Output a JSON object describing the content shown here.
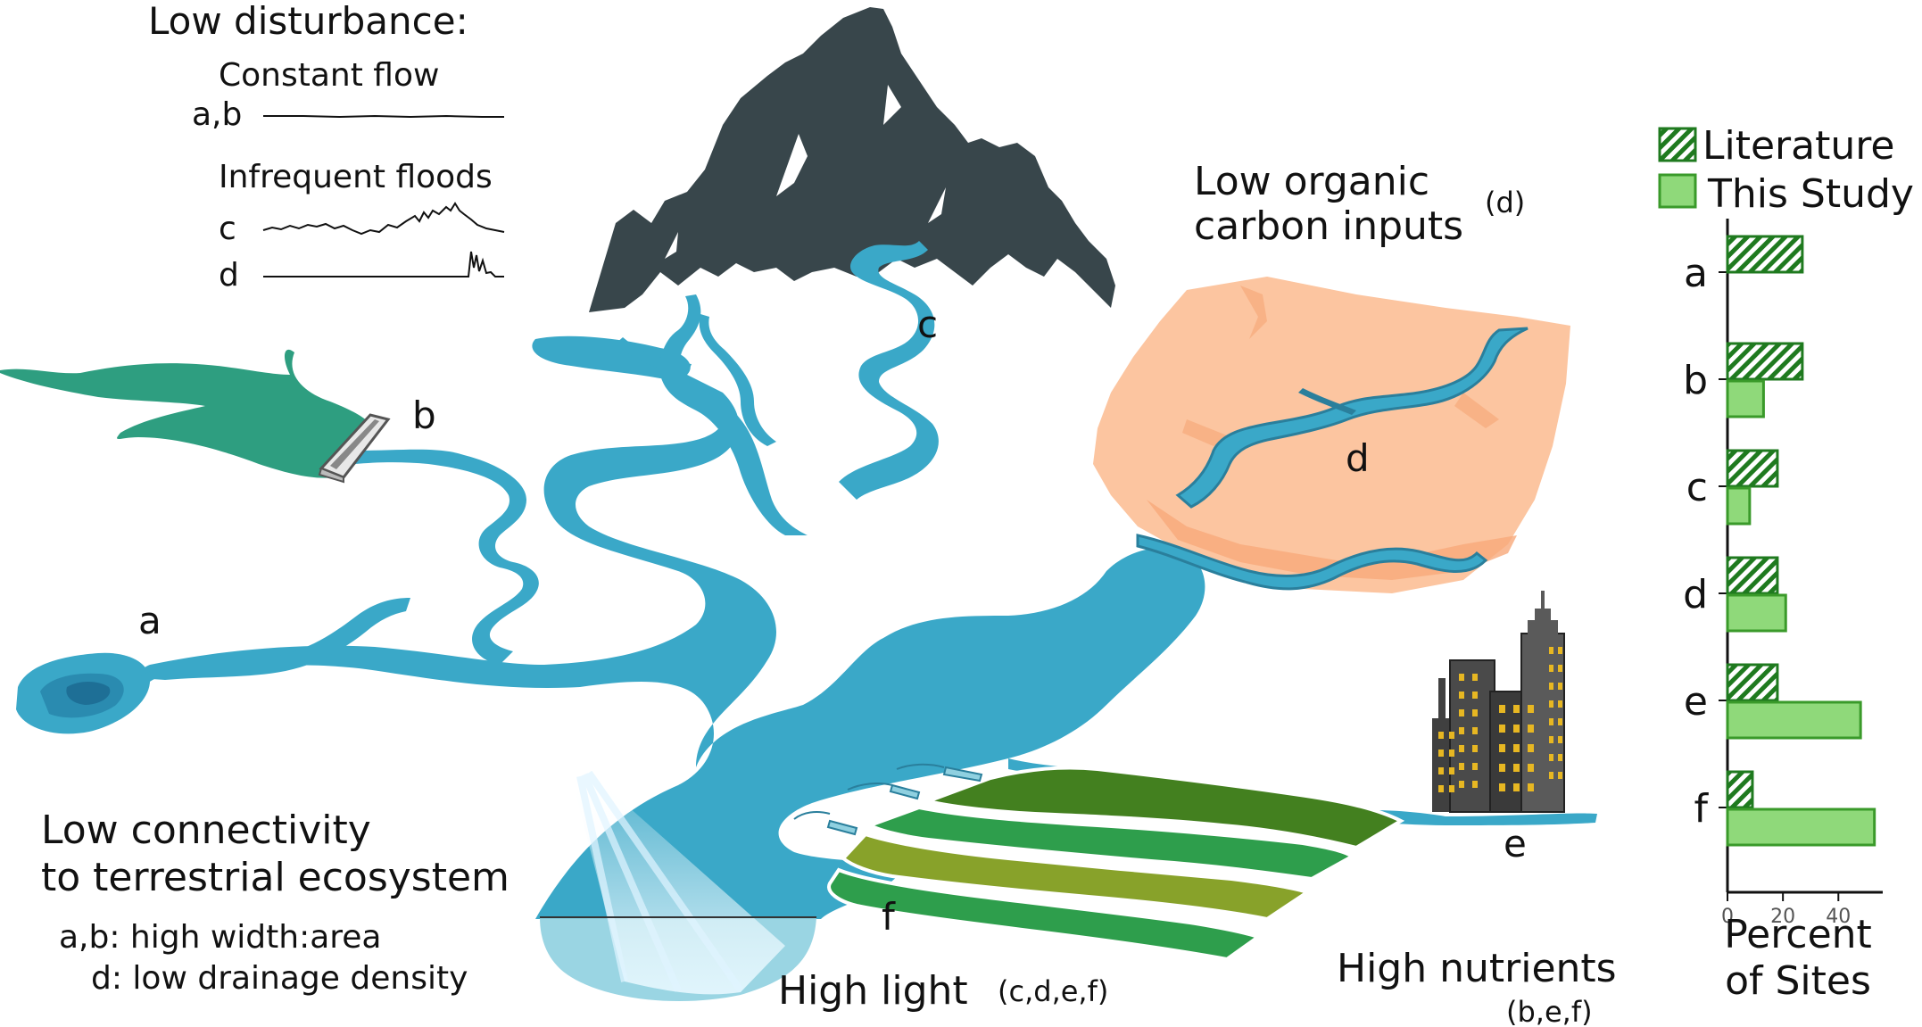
{
  "disturbance": {
    "title": "Low disturbance:",
    "constant_flow": "Constant flow",
    "ab_label": "a,b",
    "infrequent_floods": "Infrequent floods",
    "c_label": "c",
    "d_label": "d"
  },
  "diagram_labels": {
    "a": "a",
    "b": "b",
    "c": "c",
    "d": "d",
    "e": "e",
    "f": "f"
  },
  "organic": {
    "line1": "Low organic",
    "line2": "carbon inputs",
    "sup": "(d)"
  },
  "connectivity": {
    "line1": "Low connectivity",
    "line2": "to terrestrial ecosystem",
    "note1": "a,b: high width:area",
    "note2": "d: low drainage density"
  },
  "light": {
    "main": "High light",
    "sub": "(c,d,e,f)"
  },
  "nutrients": {
    "main": "High nutrients",
    "sub": "(b,e,f)"
  },
  "legend": {
    "literature": "Literature",
    "this_study": "This Study"
  },
  "colors": {
    "river": "#3aa8c8",
    "river_dark": "#2a7f9c",
    "reservoir": "#2e9e80",
    "mountain": "#38464b",
    "desert": "#fcc5a0",
    "desert_dark": "#f7a97a",
    "literature": "#1f7a1f",
    "this_study": "#8fd97a",
    "field_dark": "#43801f",
    "field_mid": "#2e9e4c",
    "field_olive": "#88a22a",
    "city": "#404040",
    "window": "#e7b722"
  },
  "chart_data": {
    "type": "bar",
    "orientation": "horizontal",
    "categories": [
      "a",
      "b",
      "c",
      "d",
      "e",
      "f"
    ],
    "series": [
      {
        "name": "Literature",
        "values": [
          27,
          27,
          18,
          18,
          18,
          9
        ]
      },
      {
        "name": "This Study",
        "values": [
          0,
          13,
          8,
          21,
          48,
          53
        ]
      }
    ],
    "xlabel": "Percent of Sites",
    "xlabel_line1": "Percent",
    "xlabel_line2": "of Sites",
    "xticks": [
      0,
      20,
      40
    ],
    "xlim": [
      0,
      56
    ]
  }
}
